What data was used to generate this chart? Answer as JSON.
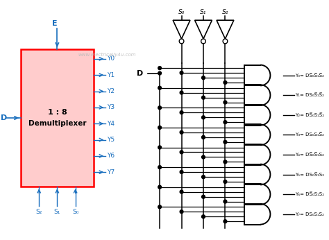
{
  "bg_color": "#ffffff",
  "watermark": "www.electrically4u.com",
  "watermark_color": "#bbbbbb",
  "box_label1": "1 : 8",
  "box_label2": "Demultiplexer",
  "output_labels": [
    "Y0",
    "Y1",
    "Y2",
    "Y3",
    "Y4",
    "Y5",
    "Y6",
    "Y7"
  ],
  "gate_labels": [
    "Y₀= DS̅₀S̅₁S̅₂",
    "Y₁= DS₀S̅₁S̅₂",
    "Y₂= DS̅₀S₁S̅₂",
    "Y₃= DS₀S₁S̅₂",
    "Y₄= DS̅₀S̅₁S₂",
    "Y₅= DS₀S̅₁S₂",
    "Y₆= DS̅₀S₁S₂",
    "Y₇= DS₀S₁S₂"
  ],
  "arrow_color": "#1a6fbe",
  "line_color": "#000000"
}
